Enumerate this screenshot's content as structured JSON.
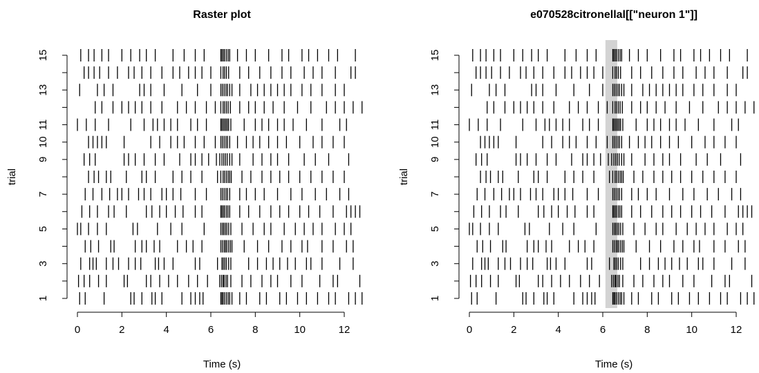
{
  "chart_data": [
    {
      "type": "raster",
      "title": "Raster plot",
      "xlabel": "Time (s)",
      "ylabel": "trial",
      "xlim": [
        0,
        13
      ],
      "xticks": [
        0,
        2,
        4,
        6,
        8,
        10,
        12
      ],
      "ylim": [
        1,
        15
      ],
      "yticks": [
        1,
        {
          "value": 2,
          "label": null
        },
        3,
        {
          "value": 4,
          "label": null
        },
        5,
        {
          "value": 6,
          "label": null
        },
        7,
        {
          "value": 8,
          "label": null
        },
        9,
        10,
        11,
        {
          "value": 12,
          "label": null
        },
        13,
        {
          "value": 14,
          "label": null
        },
        15
      ],
      "color": "#000000",
      "trials": [
        [
          0.1,
          0.35,
          1.2,
          2.4,
          2.55,
          2.9,
          3.35,
          3.5,
          3.8,
          4.7,
          5.1,
          5.3,
          5.5,
          5.65,
          6.45,
          6.5,
          6.55,
          6.62,
          6.7,
          6.78,
          6.85,
          6.95,
          7.3,
          7.6,
          8.2,
          8.5,
          9.1,
          9.4,
          9.9,
          10.3,
          10.8,
          11.3,
          11.6,
          12.2,
          12.5,
          12.8
        ],
        [
          0.05,
          0.3,
          0.55,
          0.95,
          1.3,
          2.1,
          2.25,
          3.1,
          3.3,
          3.7,
          4.1,
          4.5,
          5.0,
          5.4,
          5.85,
          6.4,
          6.48,
          6.55,
          6.6,
          6.68,
          6.75,
          6.9,
          7.4,
          7.8,
          8.3,
          8.7,
          9.0,
          9.6,
          10.1,
          10.9,
          11.5,
          11.7,
          12.7
        ],
        [
          0.15,
          0.55,
          0.7,
          0.85,
          1.3,
          1.6,
          1.85,
          2.3,
          2.6,
          2.85,
          3.5,
          3.65,
          3.9,
          4.3,
          5.3,
          5.5,
          6.3,
          6.5,
          6.56,
          6.63,
          6.7,
          6.8,
          6.9,
          7.7,
          8.1,
          8.5,
          8.8,
          9.1,
          9.45,
          9.8,
          10.3,
          10.5,
          11.0,
          11.8,
          12.4
        ],
        [
          0.35,
          0.6,
          0.95,
          1.5,
          1.65,
          2.6,
          2.9,
          3.1,
          3.45,
          3.7,
          4.5,
          4.9,
          5.2,
          5.6,
          6.45,
          6.52,
          6.6,
          6.66,
          6.72,
          6.8,
          6.88,
          6.95,
          7.5,
          8.1,
          8.6,
          9.2,
          9.6,
          10.1,
          10.35,
          11.0,
          11.5,
          12.1,
          12.4
        ],
        [
          0.0,
          0.15,
          0.5,
          0.9,
          1.3,
          2.5,
          2.7,
          3.6,
          4.2,
          4.7,
          5.7,
          6.45,
          6.52,
          6.58,
          6.65,
          6.72,
          6.8,
          6.9,
          7.4,
          7.9,
          8.4,
          8.7,
          9.3,
          9.8,
          10.2,
          10.6,
          11.0,
          11.6,
          12.0,
          12.3
        ],
        [
          0.2,
          0.55,
          0.9,
          1.4,
          1.65,
          2.2,
          3.1,
          3.35,
          3.7,
          4.0,
          4.4,
          4.75,
          5.3,
          5.6,
          6.45,
          6.5,
          6.56,
          6.62,
          6.7,
          6.77,
          6.85,
          7.3,
          7.7,
          8.2,
          8.7,
          9.1,
          9.5,
          10.0,
          10.4,
          10.9,
          11.5,
          12.1,
          12.3,
          12.5,
          12.7
        ],
        [
          0.35,
          0.7,
          1.1,
          1.45,
          1.8,
          2.0,
          2.3,
          2.75,
          3.0,
          3.3,
          3.8,
          4.0,
          4.3,
          4.65,
          5.3,
          5.8,
          6.45,
          6.52,
          6.6,
          6.68,
          6.75,
          6.85,
          7.3,
          7.6,
          8.0,
          8.4,
          9.0,
          9.6,
          10.1,
          10.7,
          11.2,
          11.8,
          12.2
        ],
        [
          0.5,
          0.75,
          0.95,
          1.3,
          1.5,
          2.2,
          2.9,
          3.1,
          3.5,
          4.3,
          4.7,
          5.1,
          5.6,
          6.3,
          6.45,
          6.55,
          6.62,
          6.7,
          6.78,
          6.85,
          6.92,
          7.4,
          7.8,
          8.3,
          8.7,
          9.1,
          9.5,
          10.0,
          10.5,
          11.0,
          11.5,
          12.0
        ],
        [
          0.3,
          0.55,
          0.8,
          2.1,
          2.3,
          2.6,
          3.0,
          3.5,
          3.9,
          4.6,
          5.1,
          5.3,
          5.6,
          5.9,
          6.25,
          6.4,
          6.5,
          6.58,
          6.66,
          6.74,
          6.85,
          6.95,
          7.3,
          7.9,
          8.3,
          8.7,
          9.0,
          9.5,
          10.2,
          10.7,
          11.3,
          12.2
        ],
        [
          0.5,
          0.7,
          0.9,
          1.1,
          1.3,
          2.1,
          3.3,
          3.7,
          4.2,
          4.5,
          4.8,
          5.3,
          5.7,
          6.2,
          6.45,
          6.52,
          6.6,
          6.68,
          6.75,
          6.85,
          7.2,
          7.6,
          7.9,
          8.2,
          8.6,
          9.0,
          9.4,
          10.0,
          10.6,
          11.0,
          11.5,
          12.0
        ],
        [
          0.0,
          0.4,
          0.8,
          1.4,
          2.4,
          3.0,
          3.4,
          3.6,
          3.9,
          4.2,
          4.5,
          5.1,
          5.4,
          5.8,
          6.45,
          6.5,
          6.56,
          6.62,
          6.68,
          6.74,
          6.8,
          6.9,
          7.5,
          8.0,
          8.3,
          8.6,
          9.0,
          9.3,
          9.7,
          10.3,
          11.0,
          11.8,
          12.1
        ],
        [
          0.8,
          1.1,
          1.6,
          2.0,
          2.3,
          2.6,
          2.9,
          3.3,
          3.8,
          4.5,
          4.9,
          5.3,
          5.8,
          6.2,
          6.45,
          6.55,
          6.62,
          6.7,
          6.78,
          6.88,
          7.3,
          7.7,
          8.0,
          8.4,
          8.8,
          9.3,
          9.9,
          10.5,
          11.2,
          11.6,
          12.0,
          12.4,
          12.8
        ],
        [
          0.1,
          0.9,
          1.2,
          1.6,
          2.8,
          3.0,
          3.3,
          3.9,
          4.7,
          5.4,
          6.0,
          6.45,
          6.52,
          6.6,
          6.68,
          6.75,
          6.85,
          6.95,
          7.3,
          7.8,
          8.1,
          8.4,
          8.7,
          9.0,
          9.3,
          9.6,
          10.1,
          10.5,
          11.0,
          11.6,
          12.0
        ],
        [
          0.3,
          0.5,
          0.75,
          1.0,
          1.4,
          1.8,
          2.3,
          2.55,
          2.9,
          3.3,
          3.8,
          4.3,
          4.6,
          5.0,
          5.3,
          5.6,
          6.0,
          6.45,
          6.55,
          6.62,
          6.7,
          6.8,
          7.3,
          7.7,
          8.2,
          8.7,
          9.2,
          9.6,
          10.2,
          10.6,
          11.0,
          11.6,
          12.3,
          12.5
        ],
        [
          0.15,
          0.5,
          0.75,
          1.1,
          1.4,
          2.0,
          2.4,
          2.8,
          3.1,
          3.5,
          4.3,
          4.8,
          5.3,
          5.7,
          6.45,
          6.5,
          6.56,
          6.62,
          6.7,
          6.78,
          6.85,
          7.2,
          7.6,
          8.0,
          8.6,
          9.2,
          9.5,
          10.1,
          10.4,
          10.8,
          11.3,
          11.7,
          12.5
        ]
      ]
    },
    {
      "type": "raster",
      "title": "e070528citronellal[[\"neuron 1\"]]",
      "xlabel": "Time (s)",
      "ylabel": "trial",
      "xlim": [
        0,
        13
      ],
      "xticks": [
        0,
        2,
        4,
        6,
        8,
        10,
        12
      ],
      "ylim": [
        1,
        15
      ],
      "yticks": [
        1,
        {
          "value": 2,
          "label": null
        },
        3,
        {
          "value": 4,
          "label": null
        },
        5,
        {
          "value": 6,
          "label": null
        },
        7,
        {
          "value": 8,
          "label": null
        },
        9,
        10,
        11,
        {
          "value": 12,
          "label": null
        },
        13,
        {
          "value": 14,
          "label": null
        },
        15
      ],
      "color": "#000000",
      "highlight": [
        6.12,
        6.65
      ],
      "highlight_color": "#d3d3d3",
      "trials": [
        [
          0.1,
          0.35,
          1.2,
          2.4,
          2.55,
          2.9,
          3.35,
          3.5,
          3.8,
          4.7,
          5.1,
          5.3,
          5.5,
          5.65,
          6.45,
          6.5,
          6.55,
          6.62,
          6.7,
          6.78,
          6.85,
          6.95,
          7.3,
          7.6,
          8.2,
          8.5,
          9.1,
          9.4,
          9.9,
          10.3,
          10.8,
          11.3,
          11.6,
          12.2,
          12.5,
          12.8
        ],
        [
          0.05,
          0.3,
          0.55,
          0.95,
          1.3,
          2.1,
          2.25,
          3.1,
          3.3,
          3.7,
          4.1,
          4.5,
          5.0,
          5.4,
          5.85,
          6.4,
          6.48,
          6.55,
          6.6,
          6.68,
          6.75,
          6.9,
          7.4,
          7.8,
          8.3,
          8.7,
          9.0,
          9.6,
          10.1,
          10.9,
          11.5,
          11.7,
          12.7
        ],
        [
          0.15,
          0.55,
          0.7,
          0.85,
          1.3,
          1.6,
          1.85,
          2.3,
          2.6,
          2.85,
          3.5,
          3.65,
          3.9,
          4.3,
          5.3,
          5.5,
          6.3,
          6.5,
          6.56,
          6.63,
          6.7,
          6.8,
          6.9,
          7.7,
          8.1,
          8.5,
          8.8,
          9.1,
          9.45,
          9.8,
          10.3,
          10.5,
          11.0,
          11.8,
          12.4
        ],
        [
          0.35,
          0.6,
          0.95,
          1.5,
          1.65,
          2.6,
          2.9,
          3.1,
          3.45,
          3.7,
          4.5,
          4.9,
          5.2,
          5.6,
          6.45,
          6.52,
          6.6,
          6.66,
          6.72,
          6.8,
          6.88,
          6.95,
          7.5,
          8.1,
          8.6,
          9.2,
          9.6,
          10.1,
          10.35,
          11.0,
          11.5,
          12.1,
          12.4
        ],
        [
          0.0,
          0.15,
          0.5,
          0.9,
          1.3,
          2.5,
          2.7,
          3.6,
          4.2,
          4.7,
          5.7,
          6.45,
          6.52,
          6.58,
          6.65,
          6.72,
          6.8,
          6.9,
          7.4,
          7.9,
          8.4,
          8.7,
          9.3,
          9.8,
          10.2,
          10.6,
          11.0,
          11.6,
          12.0,
          12.3
        ],
        [
          0.2,
          0.55,
          0.9,
          1.4,
          1.65,
          2.2,
          3.1,
          3.35,
          3.7,
          4.0,
          4.4,
          4.75,
          5.3,
          5.6,
          6.45,
          6.5,
          6.56,
          6.62,
          6.7,
          6.77,
          6.85,
          7.3,
          7.7,
          8.2,
          8.7,
          9.1,
          9.5,
          10.0,
          10.4,
          10.9,
          11.5,
          12.1,
          12.3,
          12.5,
          12.7
        ],
        [
          0.35,
          0.7,
          1.1,
          1.45,
          1.8,
          2.0,
          2.3,
          2.75,
          3.0,
          3.3,
          3.8,
          4.0,
          4.3,
          4.65,
          5.3,
          5.8,
          6.45,
          6.52,
          6.6,
          6.68,
          6.75,
          6.85,
          7.3,
          7.6,
          8.0,
          8.4,
          9.0,
          9.6,
          10.1,
          10.7,
          11.2,
          11.8,
          12.2
        ],
        [
          0.5,
          0.75,
          0.95,
          1.3,
          1.5,
          2.2,
          2.9,
          3.1,
          3.5,
          4.3,
          4.7,
          5.1,
          5.6,
          6.3,
          6.45,
          6.55,
          6.62,
          6.7,
          6.78,
          6.85,
          6.92,
          7.4,
          7.8,
          8.3,
          8.7,
          9.1,
          9.5,
          10.0,
          10.5,
          11.0,
          11.5,
          12.0
        ],
        [
          0.3,
          0.55,
          0.8,
          2.1,
          2.3,
          2.6,
          3.0,
          3.5,
          3.9,
          4.6,
          5.1,
          5.3,
          5.6,
          5.9,
          6.25,
          6.4,
          6.5,
          6.58,
          6.66,
          6.74,
          6.85,
          6.95,
          7.3,
          7.9,
          8.3,
          8.7,
          9.0,
          9.5,
          10.2,
          10.7,
          11.3,
          12.2
        ],
        [
          0.5,
          0.7,
          0.9,
          1.1,
          1.3,
          2.1,
          3.3,
          3.7,
          4.2,
          4.5,
          4.8,
          5.3,
          5.7,
          6.2,
          6.45,
          6.52,
          6.6,
          6.68,
          6.75,
          6.85,
          7.2,
          7.6,
          7.9,
          8.2,
          8.6,
          9.0,
          9.4,
          10.0,
          10.6,
          11.0,
          11.5,
          12.0
        ],
        [
          0.0,
          0.4,
          0.8,
          1.4,
          2.4,
          3.0,
          3.4,
          3.6,
          3.9,
          4.2,
          4.5,
          5.1,
          5.4,
          5.8,
          6.45,
          6.5,
          6.56,
          6.62,
          6.68,
          6.74,
          6.8,
          6.9,
          7.5,
          8.0,
          8.3,
          8.6,
          9.0,
          9.3,
          9.7,
          10.3,
          11.0,
          11.8,
          12.1
        ],
        [
          0.8,
          1.1,
          1.6,
          2.0,
          2.3,
          2.6,
          2.9,
          3.3,
          3.8,
          4.5,
          4.9,
          5.3,
          5.8,
          6.2,
          6.45,
          6.55,
          6.62,
          6.7,
          6.78,
          6.88,
          7.3,
          7.7,
          8.0,
          8.4,
          8.8,
          9.3,
          9.9,
          10.5,
          11.2,
          11.6,
          12.0,
          12.4,
          12.8
        ],
        [
          0.1,
          0.9,
          1.2,
          1.6,
          2.8,
          3.0,
          3.3,
          3.9,
          4.7,
          5.4,
          6.0,
          6.45,
          6.52,
          6.6,
          6.68,
          6.75,
          6.85,
          6.95,
          7.3,
          7.8,
          8.1,
          8.4,
          8.7,
          9.0,
          9.3,
          9.6,
          10.1,
          10.5,
          11.0,
          11.6,
          12.0
        ],
        [
          0.3,
          0.5,
          0.75,
          1.0,
          1.4,
          1.8,
          2.3,
          2.55,
          2.9,
          3.3,
          3.8,
          4.3,
          4.6,
          5.0,
          5.3,
          5.6,
          6.0,
          6.45,
          6.55,
          6.62,
          6.7,
          6.8,
          7.3,
          7.7,
          8.2,
          8.7,
          9.2,
          9.6,
          10.2,
          10.6,
          11.0,
          11.6,
          12.3,
          12.5
        ],
        [
          0.15,
          0.5,
          0.75,
          1.1,
          1.4,
          2.0,
          2.4,
          2.8,
          3.1,
          3.5,
          4.3,
          4.8,
          5.3,
          5.7,
          6.45,
          6.5,
          6.56,
          6.62,
          6.7,
          6.78,
          6.85,
          7.2,
          7.6,
          8.0,
          8.6,
          9.2,
          9.5,
          10.1,
          10.4,
          10.8,
          11.3,
          11.7,
          12.5
        ]
      ]
    }
  ]
}
